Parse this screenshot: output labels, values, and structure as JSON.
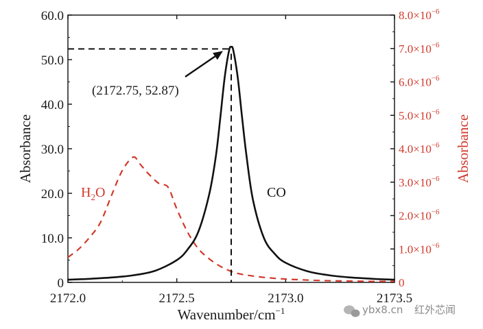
{
  "chart_data": {
    "type": "line",
    "title": "",
    "xlabel": "Wavenumber/cm",
    "xlabel_sup": "−1",
    "ylabel_left": "Absorbance",
    "ylabel_right": "Absorbance",
    "xlim": [
      2172.0,
      2173.5
    ],
    "ylim_left": [
      0,
      60
    ],
    "ylim_right": [
      0,
      8e-06
    ],
    "x_ticks": [
      {
        "value": 2172.0,
        "label": "2172.0"
      },
      {
        "value": 2172.5,
        "label": "2172.5"
      },
      {
        "value": 2173.0,
        "label": "2173.0"
      },
      {
        "value": 2173.5,
        "label": "2173.5"
      }
    ],
    "y_left_ticks": [
      {
        "value": 0,
        "label": "0"
      },
      {
        "value": 10,
        "label": "10.0"
      },
      {
        "value": 20,
        "label": "20.0"
      },
      {
        "value": 30,
        "label": "30.0"
      },
      {
        "value": 40,
        "label": "40.0"
      },
      {
        "value": 50,
        "label": "50.0"
      },
      {
        "value": 60,
        "label": "60.0"
      }
    ],
    "y_right_ticks": [
      {
        "value": 0,
        "mant": "0",
        "exp": ""
      },
      {
        "value": 1e-06,
        "mant": "1.0×10",
        "exp": "−6"
      },
      {
        "value": 2e-06,
        "mant": "2.0×10",
        "exp": "−6"
      },
      {
        "value": 3e-06,
        "mant": "3.0×10",
        "exp": "−6"
      },
      {
        "value": 4e-06,
        "mant": "4.0×10",
        "exp": "−6"
      },
      {
        "value": 5e-06,
        "mant": "5.0×10",
        "exp": "−6"
      },
      {
        "value": 6e-06,
        "mant": "6.0×10",
        "exp": "−6"
      },
      {
        "value": 7e-06,
        "mant": "7.0×10",
        "exp": "−6"
      },
      {
        "value": 8e-06,
        "mant": "8.0×10",
        "exp": "−6"
      }
    ],
    "series": [
      {
        "name": "CO",
        "axis": "left",
        "color": "#111111",
        "style": "solid",
        "label": "CO",
        "x": [
          2172.0,
          2172.1,
          2172.2,
          2172.3,
          2172.4,
          2172.5,
          2172.55,
          2172.6,
          2172.65,
          2172.68,
          2172.7,
          2172.72,
          2172.74,
          2172.75,
          2172.76,
          2172.78,
          2172.8,
          2172.82,
          2172.85,
          2172.9,
          2172.95,
          2173.0,
          2173.1,
          2173.2,
          2173.3,
          2173.4,
          2173.5
        ],
        "y": [
          0.6,
          0.8,
          1.1,
          1.6,
          2.6,
          5.0,
          7.4,
          11.5,
          20.0,
          28.5,
          37.0,
          46.0,
          52.0,
          52.87,
          52.0,
          46.0,
          37.0,
          28.5,
          18.5,
          10.0,
          6.4,
          4.4,
          2.5,
          1.6,
          1.1,
          0.8,
          0.6
        ]
      },
      {
        "name": "H2O",
        "axis": "right",
        "color": "#d0392b",
        "style": "dashed",
        "label_main": "H",
        "label_sub": "2",
        "label_tail": "O",
        "x": [
          2172.0,
          2172.05,
          2172.1,
          2172.15,
          2172.2,
          2172.25,
          2172.3,
          2172.33,
          2172.37,
          2172.42,
          2172.46,
          2172.5,
          2172.55,
          2172.6,
          2172.65,
          2172.7,
          2172.75,
          2172.8,
          2172.9,
          2173.0,
          2173.1,
          2173.2,
          2173.3,
          2173.4,
          2173.5
        ],
        "y": [
          7.5e-07,
          1e-06,
          1.35e-06,
          1.8e-06,
          2.6e-06,
          3.35e-06,
          3.75e-06,
          3.55e-06,
          3.25e-06,
          2.95e-06,
          2.85e-06,
          2.2e-06,
          1.5e-06,
          1e-06,
          7e-07,
          4.8e-07,
          3.3e-07,
          2.4e-07,
          1.5e-07,
          1e-07,
          7e-08,
          5e-08,
          4e-08,
          3e-08,
          3e-08
        ]
      }
    ],
    "annotations": {
      "peak": {
        "x": 2172.75,
        "y": 52.87,
        "text": "(2172.75, 52.87)"
      }
    }
  },
  "watermark": {
    "domain": "ybx8.cn",
    "text": "红外芯闻"
  }
}
